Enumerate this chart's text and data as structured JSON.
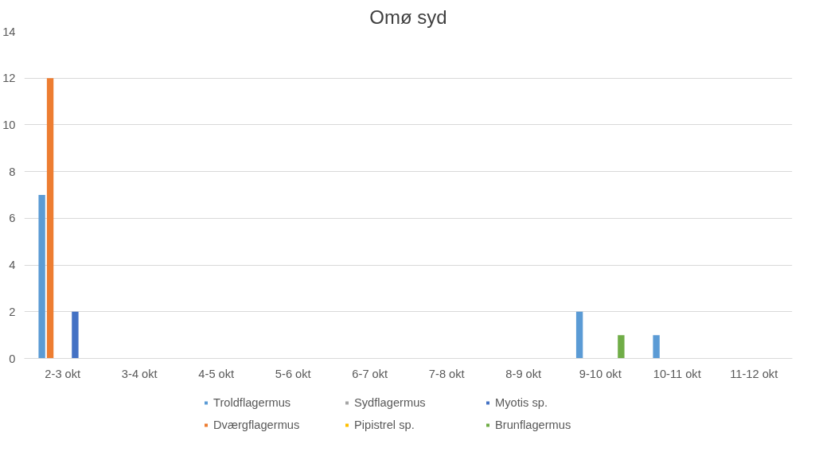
{
  "chart_data": {
    "type": "bar",
    "title": "Omø syd",
    "categories": [
      "2-3 okt",
      "3-4 okt",
      "4-5 okt",
      "5-6 okt",
      "6-7 okt",
      "7-8 okt",
      "8-9 okt",
      "9-10 okt",
      "10-11 okt",
      "11-12 okt"
    ],
    "series": [
      {
        "name": "Troldflagermus",
        "color": "#5b9bd5",
        "values": [
          7,
          0,
          0,
          0,
          0,
          0,
          0,
          2,
          1,
          0
        ]
      },
      {
        "name": "Dværgflagermus",
        "color": "#ed7d31",
        "values": [
          12,
          0,
          0,
          0,
          0,
          0,
          0,
          0,
          0,
          0
        ]
      },
      {
        "name": "Sydflagermus",
        "color": "#a5a5a5",
        "values": [
          0,
          0,
          0,
          0,
          0,
          0,
          0,
          0,
          0,
          0
        ]
      },
      {
        "name": "Pipistrel sp.",
        "color": "#ffc000",
        "values": [
          0,
          0,
          0,
          0,
          0,
          0,
          0,
          0,
          0,
          0
        ]
      },
      {
        "name": "Myotis sp.",
        "color": "#4472c4",
        "values": [
          2,
          0,
          0,
          0,
          0,
          0,
          0,
          0,
          0,
          0
        ]
      },
      {
        "name": "Brunflagermus",
        "color": "#70ad47",
        "values": [
          0,
          0,
          0,
          0,
          0,
          0,
          0,
          1,
          0,
          0
        ]
      }
    ],
    "ylim": [
      0,
      14
    ],
    "yticks": [
      0,
      2,
      4,
      6,
      8,
      10,
      12,
      14
    ],
    "grid": "y",
    "legend": "bottom"
  }
}
